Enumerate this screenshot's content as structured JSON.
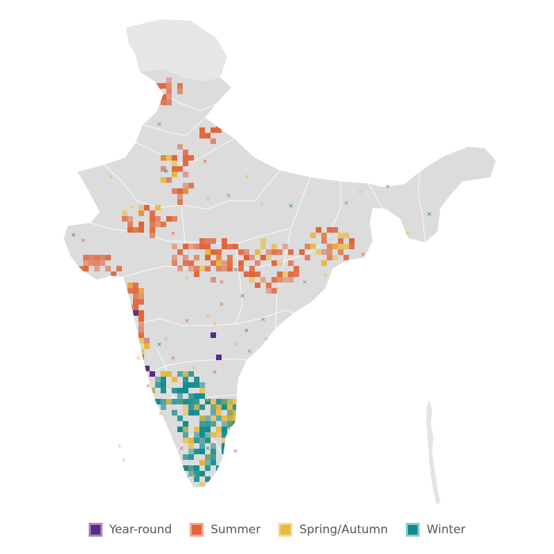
{
  "map": {
    "region": "India",
    "land_color": "#dcdcdc",
    "border_color": "#ffffff",
    "marker": "x"
  },
  "legend": {
    "items": [
      {
        "label": "Year-round",
        "fill": "#5b2a86",
        "edge": "#a48cc2"
      },
      {
        "label": "Summer",
        "fill": "#e0643a",
        "edge": "#f0a98c"
      },
      {
        "label": "Spring/Autumn",
        "fill": "#e9b93c",
        "edge": "#f3d88a"
      },
      {
        "label": "Winter",
        "fill": "#138b8d",
        "edge": "#8ccfd0"
      }
    ]
  }
}
